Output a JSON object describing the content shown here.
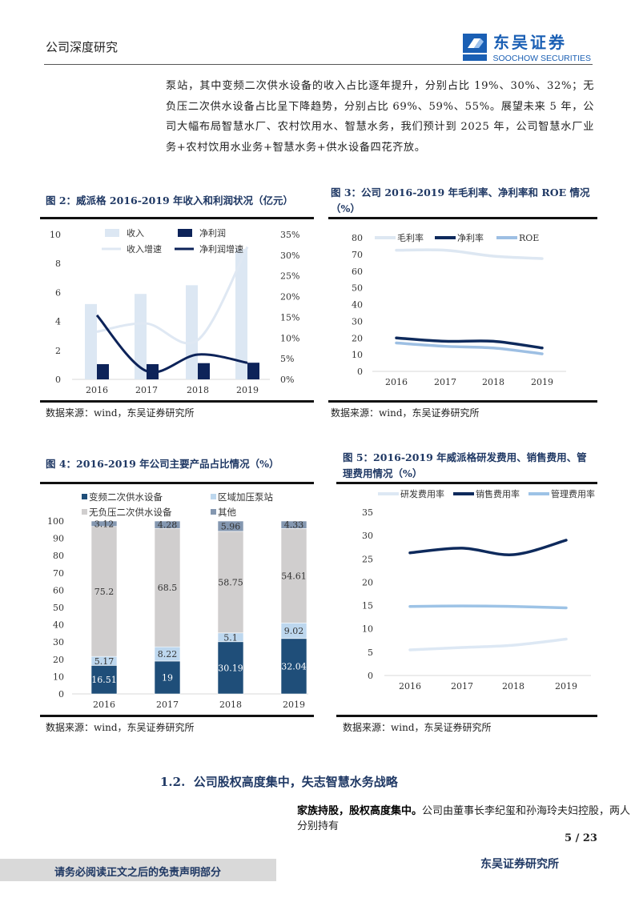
{
  "header": {
    "section": "公司深度研究",
    "logo_cn": "东吴证券",
    "logo_en": "SOOCHOW SECURITIES",
    "logo_mark": "SCS"
  },
  "intro_paragraph": "泵站，其中变频二次供水设备的收入占比逐年提升，分别占比 19%、30%、32%；无负压二次供水设备占比呈下降趋势，分别占比 69%、59%、55%。展望未来 5 年，公司大幅布局智慧水厂、农村饮用水、智慧水务，我们预计到 2025 年，公司智慧水厂业务+农村饮用水业务+智慧水务+供水设备四花齐放。",
  "figures": {
    "fig2": {
      "title": "图 2：威派格 2016-2019 年收入和利润状况（亿元）",
      "source": "数据来源：wind，东吴证券研究所"
    },
    "fig3": {
      "title": "图 3：公司 2016-2019 年毛利率、净利率和 ROE 情况（%）",
      "source": "数据来源：wind，东吴证券研究所"
    },
    "fig4": {
      "title": "图 4：2016-2019 年公司主要产品占比情况（%）",
      "source": "数据来源：wind，东吴证券研究所"
    },
    "fig5": {
      "title": "图 5：2016-2019 年威派格研发费用、销售费用、管理费用情况（%）",
      "source": "数据来源：wind，东吴证券研究所"
    }
  },
  "chart_data": [
    {
      "type": "bar+line",
      "categories": [
        "2016",
        "2017",
        "2018",
        "2019"
      ],
      "ylim": [
        0,
        10
      ],
      "yticks": [
        "0",
        "2",
        "4",
        "6",
        "8",
        "10"
      ],
      "y2lim": [
        0,
        35
      ],
      "y2ticks": [
        "0%",
        "5%",
        "10%",
        "15%",
        "20%",
        "25%",
        "30%",
        "35%"
      ],
      "series": [
        {
          "name": "收入",
          "kind": "bar",
          "axis": "left",
          "color": "#dce7f3",
          "values": [
            5.2,
            5.9,
            6.5,
            9.0
          ]
        },
        {
          "name": "净利润",
          "kind": "bar",
          "axis": "left",
          "color": "#0d2359",
          "values": [
            1.05,
            1.05,
            1.12,
            1.15
          ]
        },
        {
          "name": "收入增速",
          "kind": "line",
          "axis": "right",
          "color": "#dfe8f3",
          "values": [
            11.5,
            13.5,
            9.5,
            32
          ]
        },
        {
          "name": "净利润增速",
          "kind": "line",
          "axis": "right",
          "color": "#0d2359",
          "values": [
            15.5,
            2,
            6,
            4
          ]
        }
      ],
      "legend": "top",
      "grid": false
    },
    {
      "type": "line",
      "categories": [
        "2016",
        "2017",
        "2018",
        "2019"
      ],
      "ylim": [
        0,
        80
      ],
      "yticks": [
        "0",
        "10",
        "20",
        "30",
        "40",
        "50",
        "60",
        "70",
        "80"
      ],
      "series": [
        {
          "name": "毛利率",
          "color": "#dde7f2",
          "values": [
            72.5,
            72.5,
            69,
            67.5
          ]
        },
        {
          "name": "净利率",
          "color": "#0e2a5c",
          "values": [
            20,
            18,
            18,
            14
          ]
        },
        {
          "name": "ROE",
          "color": "#9dbfe3",
          "values": [
            17,
            15,
            14,
            10.5
          ]
        }
      ],
      "legend": "top",
      "grid": false
    },
    {
      "type": "stacked-bar",
      "categories": [
        "2016",
        "2017",
        "2018",
        "2019"
      ],
      "ylim": [
        0,
        100
      ],
      "yticks": [
        "0",
        "10",
        "20",
        "30",
        "40",
        "50",
        "60",
        "70",
        "80",
        "90",
        "100"
      ],
      "series": [
        {
          "name": "变频二次供水设备",
          "color": "#1f4e79",
          "values": [
            16.51,
            19,
            30.19,
            32.04
          ],
          "labels": [
            "16.51",
            "19",
            "30.19",
            "32.04"
          ]
        },
        {
          "name": "区域加压泵站",
          "color": "#bdd7ee",
          "values": [
            5.17,
            8.22,
            5.1,
            9.02
          ],
          "labels": [
            "5.17",
            "8.22",
            "5.1",
            "9.02"
          ]
        },
        {
          "name": "无负压二次供水设备",
          "color": "#d0cece",
          "values": [
            75.2,
            68.5,
            58.75,
            54.61
          ],
          "labels": [
            "75.2",
            "68.5",
            "58.75",
            "54.61"
          ]
        },
        {
          "name": "其他",
          "color": "#8497b0",
          "values": [
            3.12,
            4.28,
            5.96,
            4.33
          ],
          "labels": [
            "3.12",
            "4.28",
            "5.96",
            "4.33"
          ]
        }
      ],
      "legend": "top",
      "grid": false
    },
    {
      "type": "line",
      "categories": [
        "2016",
        "2017",
        "2018",
        "2019"
      ],
      "ylim": [
        0,
        35
      ],
      "yticks": [
        "0",
        "5",
        "10",
        "15",
        "20",
        "25",
        "30",
        "35"
      ],
      "series": [
        {
          "name": "研发费用率",
          "color": "#dde8f4",
          "values": [
            5.5,
            6,
            6.5,
            7.8
          ]
        },
        {
          "name": "销售费用率",
          "color": "#0e2a5c",
          "values": [
            26.3,
            27.3,
            25.9,
            29
          ]
        },
        {
          "name": "管理费用率",
          "color": "#9dc3e6",
          "values": [
            14.8,
            14.9,
            14.8,
            14.5
          ]
        }
      ],
      "legend": "top",
      "grid": false
    }
  ],
  "section": {
    "number": "1.2.",
    "title": "公司股权高度集中，失志智慧水务战略"
  },
  "body": {
    "lead": "家族持股，股权高度集中。",
    "text": "公司由董事长李纪玺和孙海玲夫妇控股，两人分别持有"
  },
  "page_number": "5 / 23",
  "footer": {
    "disclaimer": "请务必阅读正文之后的免责声明部分",
    "institute": "东吴证券研究所"
  }
}
